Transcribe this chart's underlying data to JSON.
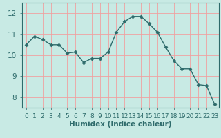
{
  "x": [
    0,
    1,
    2,
    3,
    4,
    5,
    6,
    7,
    8,
    9,
    10,
    11,
    12,
    13,
    14,
    15,
    16,
    17,
    18,
    19,
    20,
    21,
    22,
    23
  ],
  "y": [
    10.5,
    10.9,
    10.75,
    10.5,
    10.5,
    10.1,
    10.15,
    9.65,
    9.85,
    9.85,
    10.15,
    11.1,
    11.6,
    11.85,
    11.85,
    11.5,
    11.1,
    10.4,
    9.75,
    9.35,
    9.35,
    8.6,
    8.55,
    7.65
  ],
  "line_color": "#2e6b6b",
  "marker": "D",
  "marker_size": 2.5,
  "bg_color": "#c8eae4",
  "grid_color": "#f0a0a0",
  "xlabel": "Humidex (Indice chaleur)",
  "ylim": [
    7.5,
    12.5
  ],
  "xlim": [
    -0.5,
    23.5
  ],
  "yticks": [
    8,
    9,
    10,
    11,
    12
  ],
  "xticks": [
    0,
    1,
    2,
    3,
    4,
    5,
    6,
    7,
    8,
    9,
    10,
    11,
    12,
    13,
    14,
    15,
    16,
    17,
    18,
    19,
    20,
    21,
    22,
    23
  ],
  "tick_color": "#2e6b6b",
  "label_color": "#2e6b6b",
  "axis_color": "#2e6b6b",
  "xlabel_fontsize": 7.5,
  "tick_fontsize": 6.5,
  "ytick_fontsize": 7.5
}
